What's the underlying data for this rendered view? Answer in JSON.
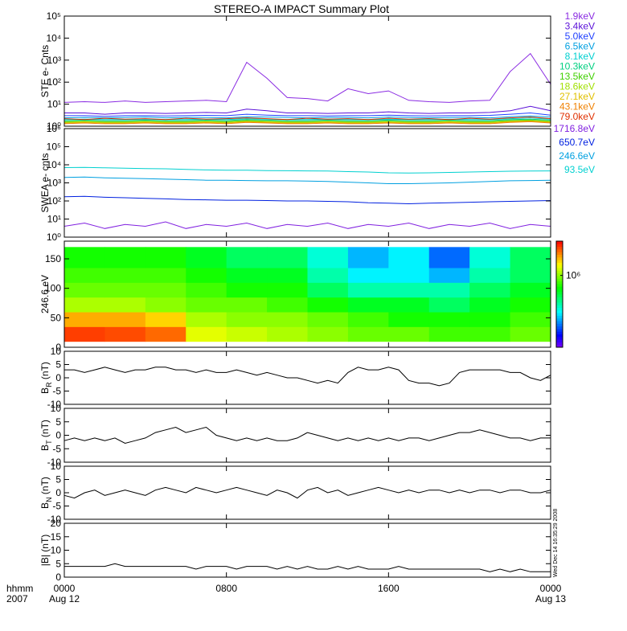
{
  "x_axis": {
    "xlim": [
      0,
      24
    ],
    "xticks": [
      {
        "value": 0,
        "label": "0000"
      },
      {
        "value": 8,
        "label": "0800"
      },
      {
        "value": 16,
        "label": "1600"
      },
      {
        "value": 24,
        "label": "0000"
      }
    ],
    "date_labels": [
      {
        "value": 0,
        "label": "Aug 12"
      },
      {
        "value": 24,
        "label": "Aug 13"
      }
    ],
    "label": [
      "hhmm",
      "2007"
    ]
  },
  "timestamp": "Wed Dec 14 16:35:29 2008",
  "chart_data": [
    {
      "type": "line",
      "title": "STEREO-A IMPACT Summary Plot",
      "ylabel": "STE e- Cnts",
      "log": true,
      "legend": "right",
      "ylim": [
        1,
        100000
      ],
      "yticks": [
        {
          "value": 1,
          "label": "10⁰"
        },
        {
          "value": 10,
          "label": "10¹"
        },
        {
          "value": 100,
          "label": "10²"
        },
        {
          "value": 1000,
          "label": "10³"
        },
        {
          "value": 10000,
          "label": "10⁴"
        },
        {
          "value": 100000,
          "label": "10⁵"
        }
      ],
      "x": [
        0,
        1,
        2,
        3,
        4,
        5,
        6,
        7,
        8,
        9,
        10,
        11,
        12,
        13,
        14,
        15,
        16,
        17,
        18,
        19,
        20,
        21,
        22,
        23,
        24
      ],
      "series": [
        {
          "name": "1.9keV",
          "color": "#8a2be2",
          "values": [
            12,
            13,
            12,
            14,
            12,
            13,
            14,
            15,
            13,
            800,
            150,
            20,
            18,
            14,
            50,
            30,
            40,
            15,
            13,
            12,
            14,
            15,
            300,
            2000,
            80
          ]
        },
        {
          "name": "3.4keV",
          "color": "#5a10d8",
          "values": [
            4,
            4,
            3.5,
            4,
            4,
            3.8,
            4,
            4.2,
            4,
            6,
            5,
            4,
            4,
            3.8,
            4,
            4,
            4.5,
            4,
            3.8,
            4,
            4,
            4.2,
            5,
            8,
            5
          ]
        },
        {
          "name": "5.0keV",
          "color": "#2040ff",
          "values": [
            3,
            3,
            2.8,
            3,
            3,
            2.9,
            3,
            3.1,
            3,
            3.5,
            3.2,
            3,
            3,
            2.9,
            3,
            3,
            3.2,
            3,
            2.9,
            3,
            3,
            3.1,
            3.5,
            4,
            3.2
          ]
        },
        {
          "name": "6.5keV",
          "color": "#00a0e0",
          "values": [
            2.4,
            2.5,
            2.4,
            2.5,
            2.6,
            2.4,
            2.5,
            2.5,
            2.4,
            2.7,
            2.6,
            2.5,
            2.4,
            2.5,
            2.5,
            2.4,
            2.6,
            2.5,
            2.4,
            2.5,
            2.5,
            2.4,
            2.7,
            2.9,
            2.6
          ]
        },
        {
          "name": "8.1keV",
          "color": "#00d0d0",
          "values": [
            2,
            2.1,
            2,
            2,
            2.1,
            2,
            2,
            2.1,
            2,
            2.2,
            2.1,
            2,
            2,
            2.1,
            2,
            2,
            2.1,
            2,
            2,
            2.1,
            2,
            2,
            2.2,
            2.4,
            2.1
          ]
        },
        {
          "name": "10.3keV",
          "color": "#00d080",
          "values": [
            1.8,
            1.9,
            1.8,
            1.8,
            1.9,
            1.8,
            1.8,
            1.9,
            1.8,
            2,
            1.9,
            1.8,
            1.8,
            1.9,
            1.8,
            1.8,
            1.9,
            1.8,
            1.8,
            1.9,
            1.8,
            1.8,
            2,
            2.1,
            1.9
          ]
        },
        {
          "name": "13.5keV",
          "color": "#40d000",
          "values": [
            1.6,
            1.7,
            1.6,
            1.6,
            1.7,
            1.6,
            1.6,
            1.7,
            1.6,
            1.8,
            1.7,
            1.6,
            1.6,
            1.7,
            1.6,
            1.6,
            1.7,
            1.6,
            1.6,
            1.7,
            1.6,
            1.6,
            1.8,
            1.9,
            1.7
          ]
        },
        {
          "name": "18.6keV",
          "color": "#a0e000",
          "values": [
            1.5,
            1.6,
            1.5,
            1.5,
            1.6,
            1.5,
            1.5,
            1.6,
            1.5,
            1.7,
            1.6,
            1.5,
            1.5,
            1.6,
            1.5,
            1.5,
            1.6,
            1.5,
            1.5,
            1.6,
            1.5,
            1.5,
            1.7,
            1.8,
            1.6
          ]
        },
        {
          "name": "27.1keV",
          "color": "#e0c000",
          "values": [
            1.4,
            1.5,
            1.4,
            1.4,
            1.5,
            1.4,
            1.4,
            1.5,
            1.4,
            1.6,
            1.5,
            1.4,
            1.4,
            1.5,
            1.4,
            1.4,
            1.5,
            1.4,
            1.4,
            1.5,
            1.4,
            1.4,
            1.6,
            1.7,
            1.5
          ]
        },
        {
          "name": "43.1keV",
          "color": "#f08000",
          "values": [
            1.3,
            1.4,
            1.3,
            1.3,
            1.4,
            1.3,
            1.3,
            1.4,
            1.3,
            1.5,
            1.4,
            1.3,
            1.3,
            1.4,
            1.3,
            1.3,
            1.4,
            1.3,
            1.3,
            1.4,
            1.3,
            1.3,
            1.5,
            1.6,
            1.4
          ]
        },
        {
          "name": "79.0keV",
          "color": "#e03000",
          "values": [
            2.2,
            2,
            2.3,
            2.1,
            2.2,
            2,
            2.3,
            2.1,
            2.2,
            2.4,
            2.2,
            2,
            2.3,
            2.1,
            2.2,
            2,
            2.3,
            2.1,
            2.2,
            2,
            2.3,
            2.1,
            2.4,
            2.6,
            2.2
          ]
        }
      ]
    },
    {
      "type": "line",
      "ylabel": "SWEA e- cnts",
      "log": true,
      "legend": "right",
      "ylim": [
        1,
        1000000
      ],
      "yticks": [
        {
          "value": 1,
          "label": "10⁰"
        },
        {
          "value": 10,
          "label": "10¹"
        },
        {
          "value": 100,
          "label": "10²"
        },
        {
          "value": 1000,
          "label": "10³"
        },
        {
          "value": 10000,
          "label": "10⁴"
        },
        {
          "value": 100000,
          "label": "10⁵"
        },
        {
          "value": 1000000,
          "label": "10⁶"
        }
      ],
      "x": [
        0,
        1,
        2,
        3,
        4,
        5,
        6,
        7,
        8,
        9,
        10,
        11,
        12,
        13,
        14,
        15,
        16,
        17,
        18,
        19,
        20,
        21,
        22,
        23,
        24
      ],
      "series": [
        {
          "name": "1716.8eV",
          "color": "#8020e0",
          "values": [
            4,
            6,
            3,
            5,
            4,
            7,
            3,
            5,
            4,
            6,
            3,
            5,
            4,
            6,
            3,
            5,
            4,
            6,
            3,
            5,
            4,
            6,
            3,
            5,
            4
          ]
        },
        {
          "name": "650.7eV",
          "color": "#0020e0",
          "values": [
            170,
            180,
            160,
            150,
            140,
            130,
            120,
            115,
            110,
            110,
            105,
            100,
            100,
            95,
            90,
            80,
            75,
            70,
            75,
            80,
            85,
            90,
            95,
            100,
            105
          ]
        },
        {
          "name": "246.6eV",
          "color": "#00a0e0",
          "values": [
            2000,
            2100,
            1900,
            1800,
            1700,
            1600,
            1500,
            1400,
            1400,
            1350,
            1300,
            1300,
            1250,
            1200,
            1100,
            1000,
            900,
            900,
            950,
            1000,
            1100,
            1200,
            1300,
            1350,
            1400
          ]
        },
        {
          "name": "93.5eV",
          "color": "#00d0d0",
          "values": [
            7000,
            7200,
            6800,
            6500,
            6200,
            6000,
            5500,
            5200,
            5000,
            5000,
            4800,
            4700,
            4600,
            4500,
            4200,
            4000,
            3600,
            3500,
            3600,
            3800,
            4000,
            4200,
            4400,
            4500,
            4600
          ]
        }
      ]
    },
    {
      "type": "heatmap",
      "ylabel": "246.6 eV",
      "colormap": "rainbow",
      "log_color": true,
      "ylim": [
        0,
        180
      ],
      "yticks": [
        0,
        50,
        100,
        150
      ],
      "x": [
        0,
        2,
        4,
        6,
        8,
        10,
        12,
        14,
        16,
        18,
        20,
        22,
        24
      ],
      "y_edges": [
        10,
        35,
        60,
        85,
        110,
        135,
        170
      ],
      "clim": [
        100000,
        3000000
      ],
      "cticks": [
        {
          "value": 1000000,
          "label": "10⁶"
        }
      ],
      "z": [
        [
          2500000,
          2400000,
          2200000,
          1300000,
          1200000,
          1100000,
          1000000,
          900000,
          900000,
          800000,
          800000,
          900000
        ],
        [
          1800000,
          1800000,
          1600000,
          1100000,
          1000000,
          1000000,
          900000,
          800000,
          700000,
          700000,
          700000,
          800000
        ],
        [
          1100000,
          1100000,
          1000000,
          900000,
          900000,
          800000,
          700000,
          600000,
          600000,
          500000,
          600000,
          700000
        ],
        [
          900000,
          900000,
          900000,
          800000,
          700000,
          700000,
          500000,
          400000,
          400000,
          400000,
          500000,
          600000
        ],
        [
          800000,
          800000,
          800000,
          700000,
          600000,
          600000,
          400000,
          300000,
          300000,
          250000,
          400000,
          500000
        ],
        [
          700000,
          700000,
          700000,
          600000,
          500000,
          500000,
          350000,
          250000,
          300000,
          200000,
          350000,
          500000
        ]
      ]
    },
    {
      "type": "line",
      "ylabel": [
        "B",
        "R",
        " (nT)"
      ],
      "ylim": [
        -10,
        10
      ],
      "yticks": [
        -10,
        -5,
        0,
        5,
        10
      ],
      "x": [
        0,
        0.5,
        1,
        1.5,
        2,
        2.5,
        3,
        3.5,
        4,
        4.5,
        5,
        5.5,
        6,
        6.5,
        7,
        7.5,
        8,
        8.5,
        9,
        9.5,
        10,
        10.5,
        11,
        11.5,
        12,
        12.5,
        13,
        13.5,
        14,
        14.5,
        15,
        15.5,
        16,
        16.5,
        17,
        17.5,
        18,
        18.5,
        19,
        19.5,
        20,
        20.5,
        21,
        21.5,
        22,
        22.5,
        23,
        23.5,
        24
      ],
      "series": [
        {
          "color": "#000000",
          "values": [
            3,
            3,
            2,
            3,
            4,
            3,
            2,
            3,
            3,
            4,
            4,
            3,
            3,
            2,
            3,
            2,
            2,
            3,
            2,
            1,
            2,
            1,
            0,
            0,
            -1,
            -2,
            -1,
            -2,
            2,
            4,
            3,
            3,
            4,
            3,
            -1,
            -2,
            -2,
            -3,
            -2,
            2,
            3,
            3,
            3,
            3,
            2,
            2,
            0,
            -1,
            1
          ]
        }
      ]
    },
    {
      "type": "line",
      "ylabel": [
        "B",
        "T",
        " (nT)"
      ],
      "ylim": [
        -10,
        10
      ],
      "yticks": [
        -10,
        -5,
        0,
        5,
        10
      ],
      "x": [
        0,
        0.5,
        1,
        1.5,
        2,
        2.5,
        3,
        3.5,
        4,
        4.5,
        5,
        5.5,
        6,
        6.5,
        7,
        7.5,
        8,
        8.5,
        9,
        9.5,
        10,
        10.5,
        11,
        11.5,
        12,
        12.5,
        13,
        13.5,
        14,
        14.5,
        15,
        15.5,
        16,
        16.5,
        17,
        17.5,
        18,
        18.5,
        19,
        19.5,
        20,
        20.5,
        21,
        21.5,
        22,
        22.5,
        23,
        23.5,
        24
      ],
      "series": [
        {
          "color": "#000000",
          "values": [
            -2,
            -1,
            -2,
            -1,
            -2,
            -1,
            -3,
            -2,
            -1,
            1,
            2,
            3,
            1,
            2,
            3,
            0,
            -1,
            -2,
            -1,
            -2,
            -1,
            -2,
            -2,
            -1,
            1,
            0,
            -1,
            -2,
            -1,
            -2,
            -1,
            -2,
            -1,
            -2,
            -1,
            -1,
            -2,
            -1,
            0,
            1,
            1,
            2,
            1,
            0,
            -1,
            -1,
            -2,
            -1,
            -1
          ]
        }
      ]
    },
    {
      "type": "line",
      "ylabel": [
        "B",
        "N",
        " (nT)"
      ],
      "ylim": [
        -10,
        10
      ],
      "yticks": [
        -10,
        -5,
        0,
        5,
        10
      ],
      "x": [
        0,
        0.5,
        1,
        1.5,
        2,
        2.5,
        3,
        3.5,
        4,
        4.5,
        5,
        5.5,
        6,
        6.5,
        7,
        7.5,
        8,
        8.5,
        9,
        9.5,
        10,
        10.5,
        11,
        11.5,
        12,
        12.5,
        13,
        13.5,
        14,
        14.5,
        15,
        15.5,
        16,
        16.5,
        17,
        17.5,
        18,
        18.5,
        19,
        19.5,
        20,
        20.5,
        21,
        21.5,
        22,
        22.5,
        23,
        23.5,
        24
      ],
      "series": [
        {
          "color": "#000000",
          "values": [
            -1,
            -2,
            0,
            1,
            -1,
            0,
            1,
            0,
            -1,
            1,
            2,
            1,
            0,
            2,
            1,
            0,
            1,
            2,
            1,
            0,
            -1,
            1,
            0,
            -2,
            1,
            2,
            0,
            1,
            -1,
            0,
            1,
            2,
            1,
            0,
            1,
            0,
            1,
            1,
            0,
            1,
            0,
            1,
            1,
            0,
            1,
            1,
            0,
            0,
            1
          ]
        }
      ]
    },
    {
      "type": "line",
      "ylabel": "|B| (nT)",
      "ylim": [
        0,
        20
      ],
      "yticks": [
        0,
        5,
        10,
        15,
        20
      ],
      "x": [
        0,
        0.5,
        1,
        1.5,
        2,
        2.5,
        3,
        3.5,
        4,
        4.5,
        5,
        5.5,
        6,
        6.5,
        7,
        7.5,
        8,
        8.5,
        9,
        9.5,
        10,
        10.5,
        11,
        11.5,
        12,
        12.5,
        13,
        13.5,
        14,
        14.5,
        15,
        15.5,
        16,
        16.5,
        17,
        17.5,
        18,
        18.5,
        19,
        19.5,
        20,
        20.5,
        21,
        21.5,
        22,
        22.5,
        23,
        23.5,
        24
      ],
      "series": [
        {
          "color": "#000000",
          "values": [
            4,
            4,
            4,
            4,
            4,
            5,
            4,
            4,
            4,
            4,
            4,
            4,
            4,
            3,
            4,
            4,
            4,
            3,
            4,
            4,
            4,
            3,
            4,
            3,
            4,
            3,
            3,
            4,
            3,
            4,
            3,
            3,
            3,
            4,
            3,
            3,
            3,
            3,
            3,
            3,
            3,
            3,
            2,
            3,
            2,
            3,
            2,
            2,
            2
          ]
        }
      ]
    }
  ]
}
